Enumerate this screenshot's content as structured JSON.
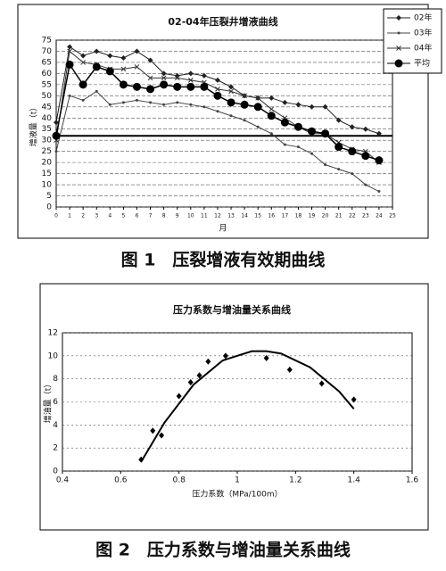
{
  "chart_data": [
    {
      "type": "line",
      "title": "02-04年压裂井增液曲线",
      "caption": "图 1　压裂增液有效期曲线",
      "x_label": "月",
      "y_label": "增液量（t）",
      "x": [
        0,
        1,
        2,
        3,
        4,
        5,
        6,
        7,
        8,
        9,
        10,
        11,
        12,
        13,
        14,
        15,
        16,
        17,
        18,
        19,
        20,
        21,
        22,
        23,
        24
      ],
      "xlim": [
        0,
        25
      ],
      "xticks": [
        0,
        1,
        2,
        3,
        4,
        5,
        6,
        7,
        8,
        9,
        10,
        11,
        12,
        13,
        14,
        15,
        16,
        17,
        18,
        19,
        20,
        21,
        22,
        23,
        24,
        25
      ],
      "ylim": [
        0,
        75
      ],
      "yticks": [
        0,
        5,
        10,
        15,
        20,
        25,
        30,
        35,
        40,
        45,
        50,
        55,
        60,
        65,
        70,
        75
      ],
      "grid": true,
      "legend": "right",
      "reference_line": 32,
      "series": [
        {
          "name": "02年",
          "color": "#222",
          "marker": "diamond",
          "values": [
            38,
            72,
            68,
            70,
            68,
            67,
            70,
            66,
            60,
            59,
            60,
            59,
            57,
            54,
            50,
            49,
            49,
            47,
            46,
            45,
            45,
            39,
            36,
            35,
            33
          ]
        },
        {
          "name": "03年",
          "color": "#444",
          "marker": "dot",
          "values": [
            25,
            50,
            48,
            52,
            46,
            47,
            48,
            47,
            46,
            47,
            46,
            45,
            43,
            41,
            39,
            36,
            33,
            28,
            27,
            24,
            19,
            17,
            15,
            10,
            7
          ]
        },
        {
          "name": "04年",
          "color": "#333",
          "marker": "cross",
          "values": [
            30,
            70,
            65,
            64,
            62,
            62,
            63,
            58,
            58,
            58,
            57,
            56,
            53,
            52,
            50,
            49,
            44,
            40,
            36,
            33,
            33,
            29,
            26,
            25,
            20
          ]
        },
        {
          "name": "平均",
          "color": "#000",
          "marker": "circle",
          "values": [
            32,
            64,
            55,
            63,
            61,
            55,
            54,
            53,
            55,
            54,
            54,
            54,
            50,
            47,
            46,
            45,
            41,
            38,
            36,
            34,
            33,
            27,
            25,
            23,
            21
          ]
        }
      ]
    },
    {
      "type": "scatter",
      "title": "压力系数与增油量关系曲线",
      "caption": "图 2　压力系数与增油量关系曲线",
      "x_label": "压力系数（MPa/100m）",
      "y_label": "增油量（t）",
      "xlim": [
        0.4,
        1.6
      ],
      "xticks": [
        0.4,
        0.6,
        0.8,
        1,
        1.2,
        1.4,
        1.6
      ],
      "ylim": [
        0,
        12
      ],
      "yticks": [
        0,
        2,
        4,
        6,
        8,
        10,
        12
      ],
      "grid": true,
      "series": [
        {
          "style": "markers",
          "color": "#000",
          "x": [
            0.67,
            0.71,
            0.74,
            0.8,
            0.84,
            0.87,
            0.9,
            0.96,
            1.1,
            1.18,
            1.29,
            1.4
          ],
          "values": [
            1,
            3.5,
            3.1,
            6.5,
            7.7,
            8.3,
            9.5,
            10,
            9.8,
            8.8,
            7.6,
            6.2
          ]
        },
        {
          "style": "line",
          "color": "#000",
          "x": [
            0.67,
            0.75,
            0.85,
            0.95,
            1.05,
            1.1,
            1.15,
            1.25,
            1.35,
            1.4
          ],
          "values": [
            0.8,
            4.2,
            7.5,
            9.6,
            10.4,
            10.4,
            10.2,
            9,
            6.9,
            5.4
          ]
        }
      ]
    }
  ]
}
